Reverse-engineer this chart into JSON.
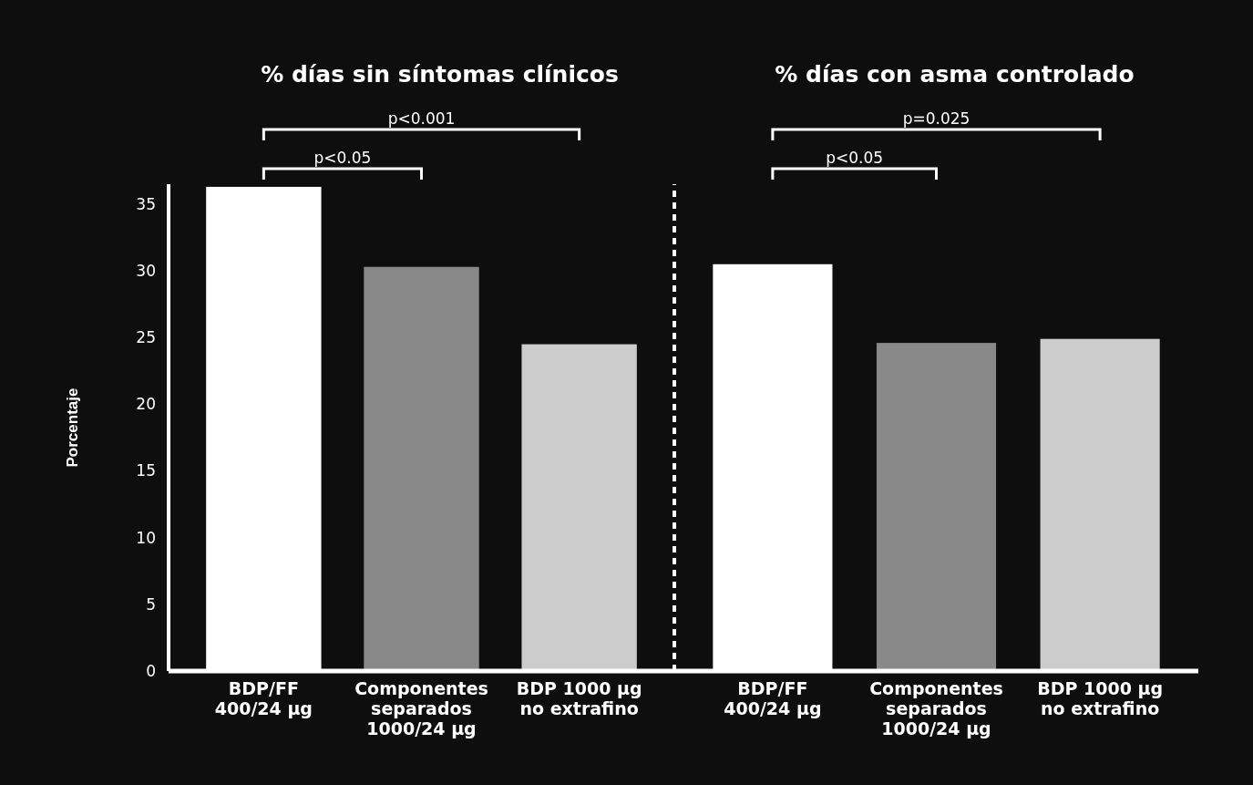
{
  "chart_data": [
    {
      "type": "bar",
      "title": "% días sin síntomas clínicos",
      "ylabel": "Porcentaje",
      "categories": [
        "BDP/FF 400/24 µg",
        "Componentes separados 1000/24 µg",
        "BDP 1000 µg no extrafino"
      ],
      "values": [
        36.3,
        30.3,
        24.5
      ],
      "colors": [
        "#ffffff",
        "#898989",
        "#cccccc"
      ],
      "ylim": [
        0,
        36.5
      ],
      "yticks": [
        0,
        5,
        10,
        15,
        20,
        25,
        30,
        35
      ],
      "grid": false,
      "annotations": [
        "p<0.05",
        "p<0.001"
      ]
    },
    {
      "type": "bar",
      "title": "% días con asma controlado",
      "categories": [
        "BDP/FF 400/24 µg",
        "Componentes separados 1000/24 µg",
        "BDP 1000 µg no extrafino"
      ],
      "values": [
        30.5,
        24.6,
        24.9
      ],
      "colors": [
        "#ffffff",
        "#898989",
        "#cccccc"
      ],
      "ylim": [
        0,
        36.5
      ],
      "grid": false,
      "tick_labels": "x",
      "annotations": [
        "p<0.05",
        "p=0.025"
      ]
    }
  ]
}
